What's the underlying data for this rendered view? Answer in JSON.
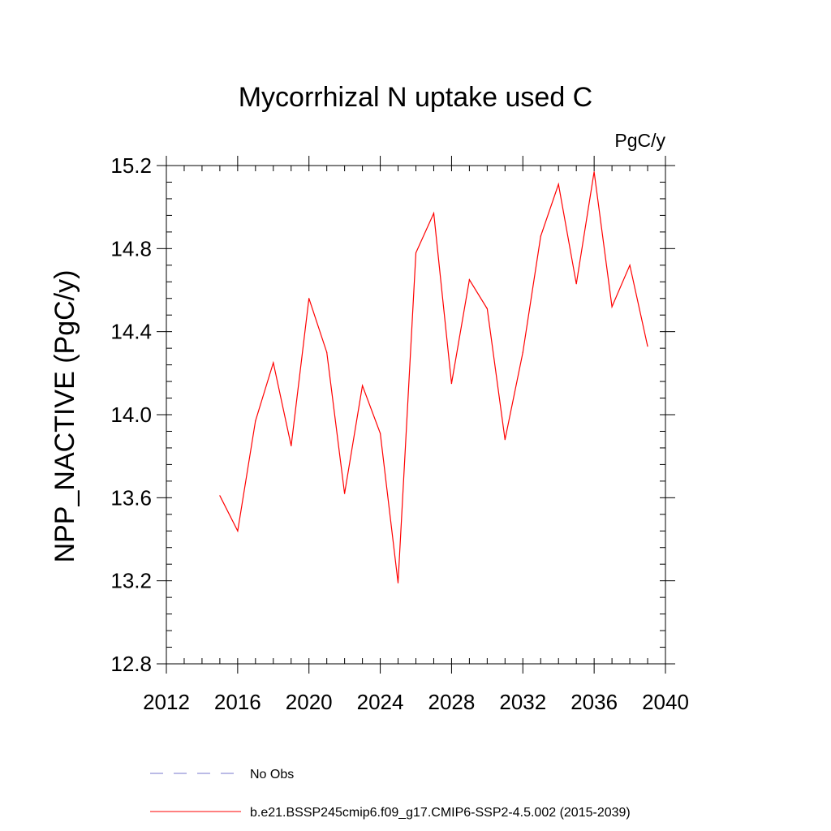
{
  "chart_data": {
    "type": "line",
    "title": "Mycorrhizal N uptake used C",
    "units_label": "PgC/y",
    "xlabel": "",
    "ylabel": "NPP_NACTIVE  (PgC/y)",
    "xlim": [
      2012,
      2040
    ],
    "ylim": [
      12.8,
      15.2
    ],
    "xticks": [
      2012,
      2016,
      2020,
      2024,
      2028,
      2032,
      2036,
      2040
    ],
    "yticks": [
      12.8,
      13.2,
      13.6,
      14.0,
      14.4,
      14.8,
      15.2
    ],
    "xtick_labels": [
      "2012",
      "2016",
      "2020",
      "2024",
      "2028",
      "2032",
      "2036",
      "2040"
    ],
    "ytick_labels": [
      "12.8",
      "13.2",
      "13.6",
      "14.0",
      "14.4",
      "14.8",
      "15.2"
    ],
    "series": [
      {
        "name": "b.e21.BSSP245cmip6.f09_g17.CMIP6-SSP2-4.5.002 (2015-2039)",
        "color": "#ff0000",
        "x": [
          2015,
          2016,
          2017,
          2018,
          2019,
          2020,
          2021,
          2022,
          2023,
          2024,
          2025,
          2026,
          2027,
          2028,
          2029,
          2030,
          2031,
          2032,
          2033,
          2034,
          2035,
          2036,
          2037,
          2038,
          2039
        ],
        "y": [
          13.61,
          13.44,
          13.97,
          14.25,
          13.85,
          14.56,
          14.3,
          13.62,
          14.14,
          13.91,
          13.19,
          14.78,
          14.97,
          14.15,
          14.65,
          14.51,
          13.88,
          14.3,
          14.86,
          15.11,
          14.63,
          15.17,
          14.52,
          14.72,
          14.33
        ]
      }
    ],
    "legend": [
      {
        "label": "No Obs",
        "style": "dashed",
        "color": "#7777cc"
      },
      {
        "label": "b.e21.BSSP245cmip6.f09_g17.CMIP6-SSP2-4.5.002 (2015-2039)",
        "style": "solid",
        "color": "#ff0000"
      }
    ]
  }
}
